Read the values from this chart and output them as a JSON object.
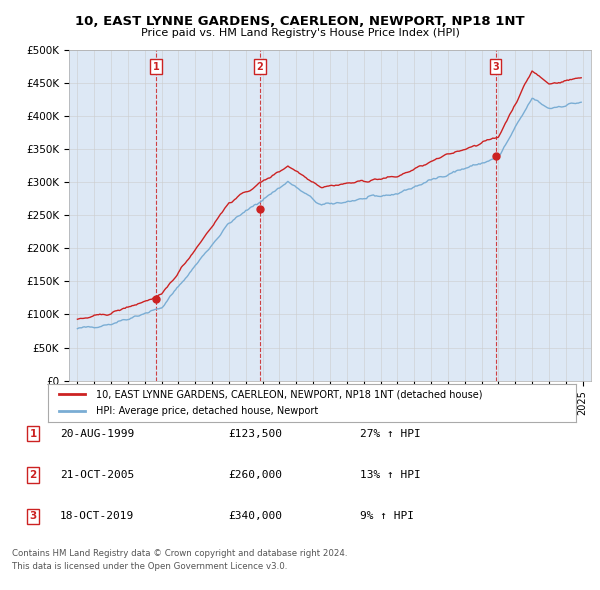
{
  "title": "10, EAST LYNNE GARDENS, CAERLEON, NEWPORT, NP18 1NT",
  "subtitle": "Price paid vs. HM Land Registry's House Price Index (HPI)",
  "background_color": "#ffffff",
  "grid_color": "#cccccc",
  "plot_bg": "#dde8f5",
  "red_line_label": "10, EAST LYNNE GARDENS, CAERLEON, NEWPORT, NP18 1NT (detached house)",
  "blue_line_label": "HPI: Average price, detached house, Newport",
  "purchase_info": [
    [
      "1",
      "20-AUG-1999",
      "£123,500",
      "27% ↑ HPI"
    ],
    [
      "2",
      "21-OCT-2005",
      "£260,000",
      "13% ↑ HPI"
    ],
    [
      "3",
      "18-OCT-2019",
      "£340,000",
      "9% ↑ HPI"
    ]
  ],
  "footer1": "Contains HM Land Registry data © Crown copyright and database right 2024.",
  "footer2": "This data is licensed under the Open Government Licence v3.0.",
  "ylim": [
    0,
    500000
  ],
  "yticks": [
    0,
    50000,
    100000,
    150000,
    200000,
    250000,
    300000,
    350000,
    400000,
    450000,
    500000
  ],
  "ytick_labels": [
    "£0",
    "£50K",
    "£100K",
    "£150K",
    "£200K",
    "£250K",
    "£300K",
    "£350K",
    "£400K",
    "£450K",
    "£500K"
  ],
  "hpi_color": "#7aadd4",
  "price_color": "#cc2222",
  "purchase_year_nums": [
    1999.667,
    2005.833,
    2019.833
  ],
  "purchase_prices": [
    123500,
    260000,
    340000
  ],
  "purchase_labels": [
    "1",
    "2",
    "3"
  ]
}
